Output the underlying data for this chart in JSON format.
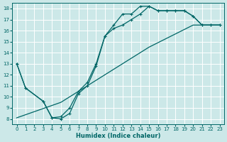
{
  "xlabel": "Humidex (Indice chaleur)",
  "bg_color": "#cce8e8",
  "grid_color": "#ffffff",
  "line_color": "#006666",
  "xlim": [
    -0.5,
    23.5
  ],
  "ylim": [
    7.5,
    18.5
  ],
  "yticks": [
    8,
    9,
    10,
    11,
    12,
    13,
    14,
    15,
    16,
    17,
    18
  ],
  "xticks": [
    0,
    1,
    2,
    3,
    4,
    5,
    6,
    7,
    8,
    9,
    10,
    11,
    12,
    13,
    14,
    15,
    16,
    17,
    18,
    19,
    20,
    21,
    22,
    23
  ],
  "line1_x": [
    0,
    1,
    3,
    4,
    5,
    6,
    7,
    8,
    9,
    10,
    11,
    12,
    13,
    14,
    15,
    16,
    17,
    18,
    19,
    20,
    21,
    22,
    23
  ],
  "line1_y": [
    13.0,
    10.8,
    9.6,
    8.1,
    8.0,
    8.5,
    10.3,
    11.0,
    12.8,
    15.5,
    16.2,
    16.5,
    17.0,
    17.5,
    18.2,
    17.8,
    17.8,
    17.8,
    17.8,
    17.3,
    16.5,
    16.5,
    16.5
  ],
  "line2_x": [
    0,
    1,
    3,
    4,
    5,
    6,
    7,
    8,
    9,
    10,
    11,
    12,
    13,
    14,
    15,
    16,
    17,
    18,
    19,
    20,
    21,
    22,
    23
  ],
  "line2_y": [
    13.0,
    10.8,
    9.6,
    8.1,
    8.2,
    9.0,
    10.5,
    11.3,
    13.0,
    15.5,
    16.5,
    17.5,
    17.5,
    18.2,
    18.2,
    17.8,
    17.8,
    17.8,
    17.8,
    17.3,
    16.5,
    16.5,
    16.5
  ],
  "line3_x": [
    0,
    5,
    10,
    15,
    20,
    23
  ],
  "line3_y": [
    8.1,
    9.5,
    12.0,
    14.5,
    16.5,
    16.5
  ]
}
